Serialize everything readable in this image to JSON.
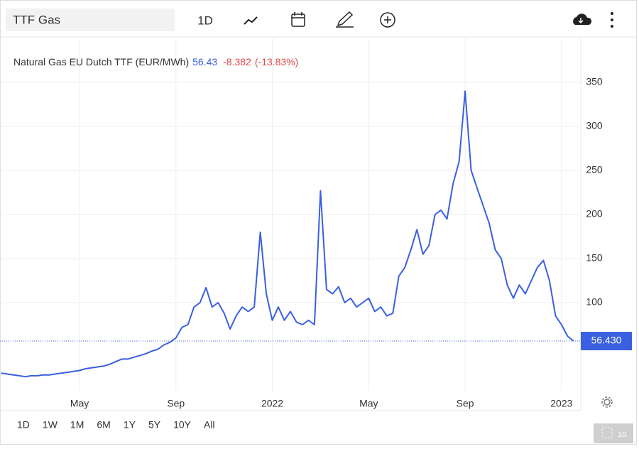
{
  "toolbar": {
    "symbol": "TTF Gas",
    "interval": "1D"
  },
  "chart_data": {
    "type": "line",
    "title": "Natural Gas EU Dutch TTF (EUR/MWh)",
    "color": "#3a5fe0",
    "last_price": {
      "value": 56.43,
      "label": "56.430"
    },
    "change": -8.382,
    "change_percent": {
      "value": -13.83,
      "label": "(-13.83%)"
    },
    "x": [
      0.75,
      1,
      1.25,
      1.5,
      1.75,
      2,
      2.25,
      2.5,
      2.75,
      3,
      3.25,
      3.5,
      3.75,
      4,
      4.25,
      4.5,
      4.75,
      5,
      5.25,
      5.5,
      5.75,
      6,
      6.25,
      6.5,
      6.75,
      7,
      7.25,
      7.5,
      7.75,
      8,
      8.25,
      8.5,
      8.75,
      9,
      9.25,
      9.5,
      9.75,
      10,
      10.25,
      10.5,
      10.75,
      11,
      11.25,
      11.5,
      11.75,
      12,
      12.25,
      12.5,
      12.75,
      13,
      13.25,
      13.5,
      13.75,
      14,
      14.25,
      14.5,
      14.75,
      15,
      15.25,
      15.5,
      15.75,
      16,
      16.25,
      16.5,
      16.75,
      17,
      17.25,
      17.5,
      17.75,
      18,
      18.25,
      18.5,
      18.75,
      19,
      19.25,
      19.5,
      19.75,
      20,
      20.25,
      20.5,
      20.75,
      21,
      21.25,
      21.5,
      21.75,
      22,
      22.25,
      22.5,
      22.75,
      23,
      23.25,
      23.5,
      23.75,
      24,
      24.25,
      24.5
    ],
    "values": [
      20,
      19,
      18,
      17,
      16,
      17,
      17,
      18,
      18,
      19,
      20,
      21,
      22,
      23,
      25,
      26,
      27,
      28,
      30,
      33,
      36,
      36,
      38,
      40,
      42,
      45,
      47,
      52,
      55,
      60,
      72,
      75,
      95,
      100,
      117,
      95,
      100,
      88,
      70,
      85,
      95,
      90,
      95,
      180,
      110,
      80,
      95,
      80,
      90,
      78,
      75,
      80,
      75,
      227,
      115,
      110,
      118,
      100,
      105,
      95,
      100,
      105,
      90,
      95,
      85,
      88,
      130,
      140,
      160,
      183,
      155,
      165,
      200,
      205,
      195,
      235,
      260,
      340,
      250,
      230,
      210,
      190,
      160,
      150,
      120,
      105,
      120,
      110,
      125,
      140,
      148,
      125,
      85,
      75,
      62,
      56.43
    ],
    "xlim": [
      0.7,
      24.8
    ],
    "xticks": [
      {
        "value": 4,
        "label": "May"
      },
      {
        "value": 8,
        "label": "Sep"
      },
      {
        "value": 12,
        "label": "2022"
      },
      {
        "value": 16,
        "label": "May"
      },
      {
        "value": 20,
        "label": "Sep"
      },
      {
        "value": 24,
        "label": "2023"
      }
    ],
    "ylim": [
      0,
      400
    ],
    "yticks": [
      100,
      150,
      200,
      250,
      300,
      350
    ],
    "grid": true
  },
  "range_buttons": [
    "1D",
    "1W",
    "1M",
    "6M",
    "1Y",
    "5Y",
    "10Y",
    "All"
  ],
  "badge": "10"
}
